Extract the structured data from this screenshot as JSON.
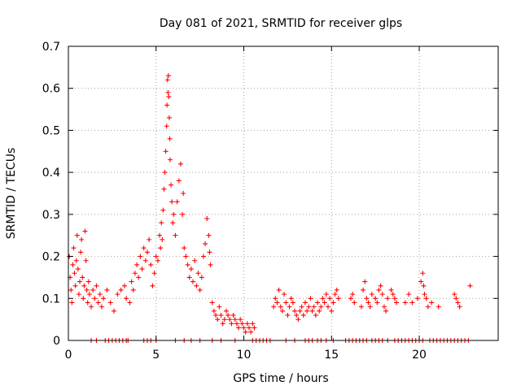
{
  "chart_data": {
    "type": "scatter",
    "title": "Day 081 of 2021, SRMTID for receiver glps",
    "xlabel": "GPS time / hours",
    "ylabel": "SRMTID / TECUs",
    "xlim": [
      0,
      24.5
    ],
    "ylim": [
      0,
      0.7
    ],
    "x_ticks": [
      "0",
      "5",
      "10",
      "15",
      "20"
    ],
    "x_tick_values": [
      0,
      5,
      10,
      15,
      20
    ],
    "y_ticks": [
      "0",
      "0.1",
      "0.2",
      "0.3",
      "0.4",
      "0.5",
      "0.6",
      "0.7"
    ],
    "y_tick_values": [
      0,
      0.1,
      0.2,
      0.3,
      0.4,
      0.5,
      0.6,
      0.7
    ],
    "grid": true,
    "marker": "+",
    "series": [
      {
        "name": "SRMTID glps",
        "color": "#ff0000",
        "points": [
          [
            0.05,
            0.2
          ],
          [
            0.1,
            0.15
          ],
          [
            0.15,
            0.12
          ],
          [
            0.2,
            0.09
          ],
          [
            0.25,
            0.18
          ],
          [
            0.3,
            0.22
          ],
          [
            0.35,
            0.16
          ],
          [
            0.4,
            0.13
          ],
          [
            0.45,
            0.19
          ],
          [
            0.5,
            0.25
          ],
          [
            0.55,
            0.17
          ],
          [
            0.6,
            0.11
          ],
          [
            0.65,
            0.14
          ],
          [
            0.7,
            0.21
          ],
          [
            0.75,
            0.24
          ],
          [
            0.8,
            0.15
          ],
          [
            0.85,
            0.1
          ],
          [
            0.9,
            0.13
          ],
          [
            0.95,
            0.26
          ],
          [
            1.0,
            0.19
          ],
          [
            1.05,
            0.12
          ],
          [
            1.1,
            0.09
          ],
          [
            1.15,
            0.14
          ],
          [
            1.2,
            0.11
          ],
          [
            1.3,
            0.08
          ],
          [
            1.4,
            0.12
          ],
          [
            1.5,
            0.1
          ],
          [
            1.6,
            0.13
          ],
          [
            1.7,
            0.09
          ],
          [
            1.8,
            0.11
          ],
          [
            1.9,
            0.08
          ],
          [
            2.0,
            0.1
          ],
          [
            2.2,
            0.12
          ],
          [
            2.4,
            0.09
          ],
          [
            2.6,
            0.07
          ],
          [
            2.8,
            0.11
          ],
          [
            3.0,
            0.12
          ],
          [
            3.2,
            0.13
          ],
          [
            3.3,
            0.1
          ],
          [
            3.5,
            0.09
          ],
          [
            3.6,
            0.14
          ],
          [
            3.7,
            0.12
          ],
          [
            3.8,
            0.16
          ],
          [
            3.9,
            0.18
          ],
          [
            4.0,
            0.15
          ],
          [
            4.1,
            0.2
          ],
          [
            4.2,
            0.17
          ],
          [
            4.3,
            0.22
          ],
          [
            4.4,
            0.19
          ],
          [
            4.5,
            0.21
          ],
          [
            4.6,
            0.24
          ],
          [
            4.7,
            0.18
          ],
          [
            4.8,
            0.13
          ],
          [
            4.9,
            0.16
          ],
          [
            5.0,
            0.2
          ],
          [
            5.1,
            0.19
          ],
          [
            5.2,
            0.25
          ],
          [
            5.25,
            0.22
          ],
          [
            5.3,
            0.28
          ],
          [
            5.35,
            0.24
          ],
          [
            5.4,
            0.31
          ],
          [
            5.45,
            0.36
          ],
          [
            5.5,
            0.4
          ],
          [
            5.55,
            0.45
          ],
          [
            5.6,
            0.51
          ],
          [
            5.62,
            0.56
          ],
          [
            5.65,
            0.62
          ],
          [
            5.68,
            0.59
          ],
          [
            5.7,
            0.63
          ],
          [
            5.72,
            0.58
          ],
          [
            5.75,
            0.53
          ],
          [
            5.78,
            0.48
          ],
          [
            5.8,
            0.43
          ],
          [
            5.85,
            0.37
          ],
          [
            5.9,
            0.33
          ],
          [
            5.95,
            0.28
          ],
          [
            6.0,
            0.3
          ],
          [
            6.1,
            0.25
          ],
          [
            6.2,
            0.33
          ],
          [
            6.3,
            0.38
          ],
          [
            6.4,
            0.42
          ],
          [
            6.5,
            0.3
          ],
          [
            6.55,
            0.35
          ],
          [
            6.6,
            0.22
          ],
          [
            6.7,
            0.2
          ],
          [
            6.8,
            0.18
          ],
          [
            6.9,
            0.15
          ],
          [
            7.0,
            0.17
          ],
          [
            7.1,
            0.14
          ],
          [
            7.2,
            0.19
          ],
          [
            7.3,
            0.13
          ],
          [
            7.4,
            0.16
          ],
          [
            7.5,
            0.12
          ],
          [
            7.6,
            0.15
          ],
          [
            7.7,
            0.2
          ],
          [
            7.8,
            0.23
          ],
          [
            7.9,
            0.29
          ],
          [
            8.0,
            0.25
          ],
          [
            8.05,
            0.21
          ],
          [
            8.1,
            0.18
          ],
          [
            8.2,
            0.09
          ],
          [
            8.3,
            0.07
          ],
          [
            8.4,
            0.06
          ],
          [
            8.5,
            0.05
          ],
          [
            8.6,
            0.08
          ],
          [
            8.7,
            0.06
          ],
          [
            8.8,
            0.04
          ],
          [
            8.9,
            0.05
          ],
          [
            9.0,
            0.07
          ],
          [
            9.1,
            0.06
          ],
          [
            9.2,
            0.05
          ],
          [
            9.3,
            0.04
          ],
          [
            9.4,
            0.06
          ],
          [
            9.5,
            0.05
          ],
          [
            9.6,
            0.04
          ],
          [
            9.7,
            0.03
          ],
          [
            9.8,
            0.05
          ],
          [
            9.9,
            0.04
          ],
          [
            10.0,
            0.03
          ],
          [
            10.1,
            0.02
          ],
          [
            10.2,
            0.04
          ],
          [
            10.3,
            0.03
          ],
          [
            10.4,
            0.02
          ],
          [
            10.5,
            0.04
          ],
          [
            10.6,
            0.03
          ],
          [
            11.7,
            0.08
          ],
          [
            11.8,
            0.1
          ],
          [
            11.9,
            0.09
          ],
          [
            12.0,
            0.12
          ],
          [
            12.1,
            0.08
          ],
          [
            12.2,
            0.07
          ],
          [
            12.3,
            0.11
          ],
          [
            12.4,
            0.09
          ],
          [
            12.5,
            0.06
          ],
          [
            12.6,
            0.08
          ],
          [
            12.7,
            0.1
          ],
          [
            12.8,
            0.09
          ],
          [
            12.9,
            0.07
          ],
          [
            13.0,
            0.06
          ],
          [
            13.1,
            0.05
          ],
          [
            13.2,
            0.07
          ],
          [
            13.3,
            0.08
          ],
          [
            13.4,
            0.06
          ],
          [
            13.5,
            0.09
          ],
          [
            13.6,
            0.07
          ],
          [
            13.7,
            0.08
          ],
          [
            13.8,
            0.1
          ],
          [
            13.9,
            0.07
          ],
          [
            14.0,
            0.08
          ],
          [
            14.1,
            0.06
          ],
          [
            14.2,
            0.09
          ],
          [
            14.3,
            0.07
          ],
          [
            14.4,
            0.08
          ],
          [
            14.5,
            0.1
          ],
          [
            14.6,
            0.09
          ],
          [
            14.7,
            0.11
          ],
          [
            14.8,
            0.08
          ],
          [
            14.9,
            0.1
          ],
          [
            15.0,
            0.07
          ],
          [
            15.1,
            0.09
          ],
          [
            15.2,
            0.11
          ],
          [
            15.3,
            0.12
          ],
          [
            15.4,
            0.1
          ],
          [
            16.1,
            0.1
          ],
          [
            16.2,
            0.11
          ],
          [
            16.3,
            0.09
          ],
          [
            16.7,
            0.08
          ],
          [
            16.8,
            0.12
          ],
          [
            16.9,
            0.14
          ],
          [
            17.0,
            0.1
          ],
          [
            17.1,
            0.09
          ],
          [
            17.2,
            0.08
          ],
          [
            17.3,
            0.11
          ],
          [
            17.5,
            0.1
          ],
          [
            17.6,
            0.09
          ],
          [
            17.7,
            0.12
          ],
          [
            17.8,
            0.13
          ],
          [
            17.9,
            0.11
          ],
          [
            18.0,
            0.08
          ],
          [
            18.1,
            0.07
          ],
          [
            18.2,
            0.1
          ],
          [
            18.4,
            0.12
          ],
          [
            18.5,
            0.11
          ],
          [
            18.6,
            0.1
          ],
          [
            18.7,
            0.09
          ],
          [
            19.2,
            0.09
          ],
          [
            19.4,
            0.11
          ],
          [
            19.6,
            0.09
          ],
          [
            19.9,
            0.1
          ],
          [
            20.1,
            0.14
          ],
          [
            20.2,
            0.16
          ],
          [
            20.25,
            0.13
          ],
          [
            20.3,
            0.11
          ],
          [
            20.4,
            0.1
          ],
          [
            20.5,
            0.08
          ],
          [
            20.7,
            0.09
          ],
          [
            21.1,
            0.08
          ],
          [
            22.0,
            0.11
          ],
          [
            22.1,
            0.1
          ],
          [
            22.2,
            0.09
          ],
          [
            22.3,
            0.08
          ],
          [
            22.9,
            0.13
          ],
          [
            1.3,
            0
          ],
          [
            1.6,
            0
          ],
          [
            2.1,
            0
          ],
          [
            2.3,
            0
          ],
          [
            2.5,
            0
          ],
          [
            2.7,
            0
          ],
          [
            2.9,
            0
          ],
          [
            3.1,
            0
          ],
          [
            3.3,
            0
          ],
          [
            3.4,
            0
          ],
          [
            4.3,
            0
          ],
          [
            4.5,
            0
          ],
          [
            4.7,
            0
          ],
          [
            5.0,
            0
          ],
          [
            6.1,
            0
          ],
          [
            6.6,
            0
          ],
          [
            7.0,
            0
          ],
          [
            7.5,
            0
          ],
          [
            8.2,
            0
          ],
          [
            8.7,
            0
          ],
          [
            9.5,
            0
          ],
          [
            10.5,
            0
          ],
          [
            10.7,
            0
          ],
          [
            10.9,
            0
          ],
          [
            11.1,
            0
          ],
          [
            11.3,
            0
          ],
          [
            11.5,
            0
          ],
          [
            12.4,
            0
          ],
          [
            12.9,
            0
          ],
          [
            13.5,
            0
          ],
          [
            13.7,
            0
          ],
          [
            13.9,
            0
          ],
          [
            14.2,
            0
          ],
          [
            14.4,
            0
          ],
          [
            14.7,
            0
          ],
          [
            15.1,
            0
          ],
          [
            15.8,
            0
          ],
          [
            16.0,
            0
          ],
          [
            16.2,
            0
          ],
          [
            16.4,
            0
          ],
          [
            16.6,
            0
          ],
          [
            16.8,
            0
          ],
          [
            17.0,
            0
          ],
          [
            17.3,
            0
          ],
          [
            17.5,
            0
          ],
          [
            17.7,
            0
          ],
          [
            17.9,
            0
          ],
          [
            18.2,
            0
          ],
          [
            18.6,
            0
          ],
          [
            18.8,
            0
          ],
          [
            19.0,
            0
          ],
          [
            19.2,
            0
          ],
          [
            19.4,
            0
          ],
          [
            19.6,
            0
          ],
          [
            19.8,
            0
          ],
          [
            20.0,
            0
          ],
          [
            20.2,
            0
          ],
          [
            20.6,
            0
          ],
          [
            20.8,
            0
          ],
          [
            21.0,
            0
          ],
          [
            21.2,
            0
          ],
          [
            21.4,
            0
          ],
          [
            21.6,
            0
          ],
          [
            21.8,
            0
          ],
          [
            22.0,
            0
          ],
          [
            22.2,
            0
          ],
          [
            22.4,
            0
          ],
          [
            22.6,
            0
          ],
          [
            22.8,
            0
          ]
        ]
      }
    ]
  }
}
